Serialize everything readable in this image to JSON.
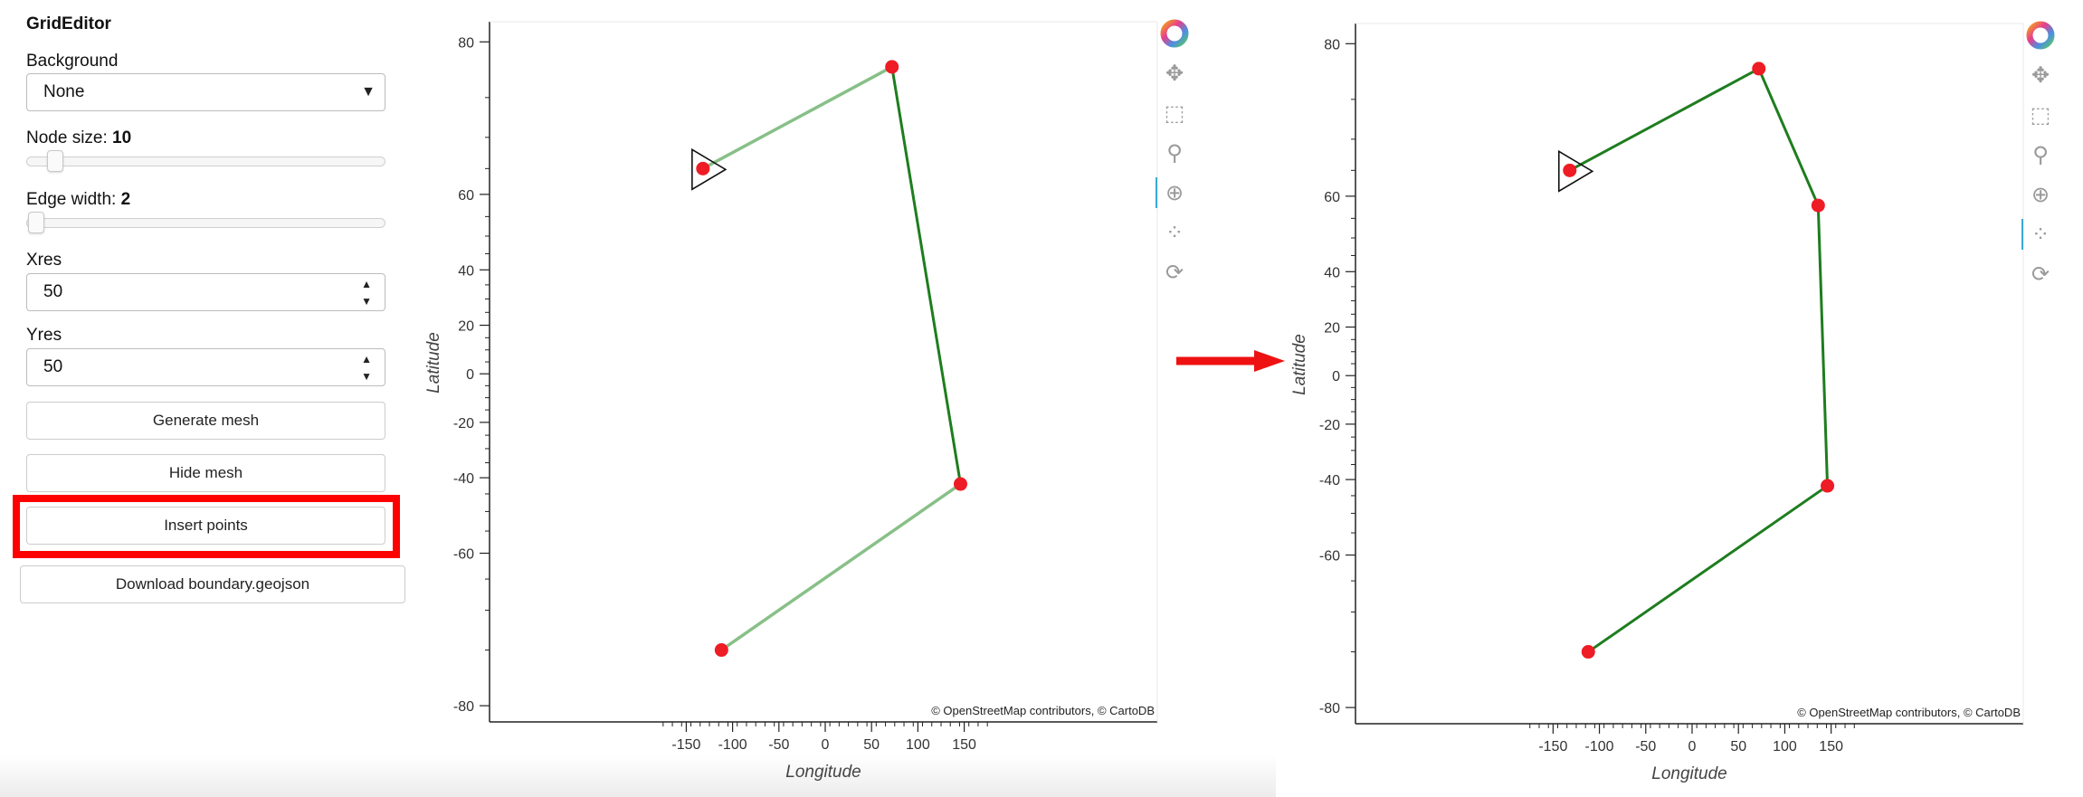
{
  "sidebar": {
    "title": "GridEditor",
    "background_label": "Background",
    "background_value": "None",
    "node_size_label": "Node size: ",
    "node_size_value": "10",
    "node_size_fraction": 0.05,
    "edge_width_label": "Edge width: ",
    "edge_width_value": "2",
    "edge_width_fraction": 0.0,
    "xres_label": "Xres",
    "xres_value": "50",
    "yres_label": "Yres",
    "yres_value": "50",
    "generate_button": "Generate mesh",
    "hide_button": "Hide mesh",
    "insert_button": "Insert points",
    "download_button": "Download boundary.geojson"
  },
  "colors": {
    "highlight": "#ff0000",
    "node": "#ee1c25",
    "edge_light": "#88c088",
    "edge_dark": "#1e7d1e",
    "arrow": "#ee1111",
    "toolbar_active": "#3aa9d6"
  },
  "icons": [
    "color-wheel-icon",
    "pan-icon",
    "box-zoom-icon",
    "wheel-zoom-icon",
    "point-draw-icon",
    "vertex-edit-icon",
    "reset-icon"
  ],
  "chart_data": [
    {
      "type": "line",
      "xlabel": "Longitude",
      "ylabel": "Latitude",
      "xticks": [
        "-150",
        "-100",
        "-50",
        "0",
        "50",
        "100",
        "150"
      ],
      "yticks": [
        "80",
        "60",
        "40",
        "20",
        "0",
        "-20",
        "-40",
        "-60",
        "-80"
      ],
      "attribution": "© OpenStreetMap contributors, © CartoDB",
      "nodes": [
        [
          -132,
          65
        ],
        [
          72,
          78
        ],
        [
          146,
          -42
        ],
        [
          -112,
          -75
        ]
      ],
      "edges": [
        [
          0,
          1
        ],
        [
          1,
          2
        ],
        [
          2,
          3
        ]
      ],
      "edge_style": [
        "light",
        "dark",
        "light"
      ]
    },
    {
      "type": "line",
      "xlabel": "Longitude",
      "ylabel": "Latitude",
      "xticks": [
        "-150",
        "-100",
        "-50",
        "0",
        "50",
        "100",
        "150"
      ],
      "yticks": [
        "80",
        "60",
        "40",
        "20",
        "0",
        "-20",
        "-40",
        "-60",
        "-80"
      ],
      "attribution": "© OpenStreetMap contributors, © CartoDB",
      "nodes": [
        [
          -132,
          65
        ],
        [
          72,
          78
        ],
        [
          136,
          58
        ],
        [
          146,
          -42
        ],
        [
          -112,
          -75
        ]
      ],
      "edges": [
        [
          0,
          1
        ],
        [
          1,
          2
        ],
        [
          2,
          3
        ],
        [
          3,
          4
        ]
      ],
      "edge_style": [
        "dark",
        "dark",
        "dark",
        "dark"
      ]
    }
  ]
}
